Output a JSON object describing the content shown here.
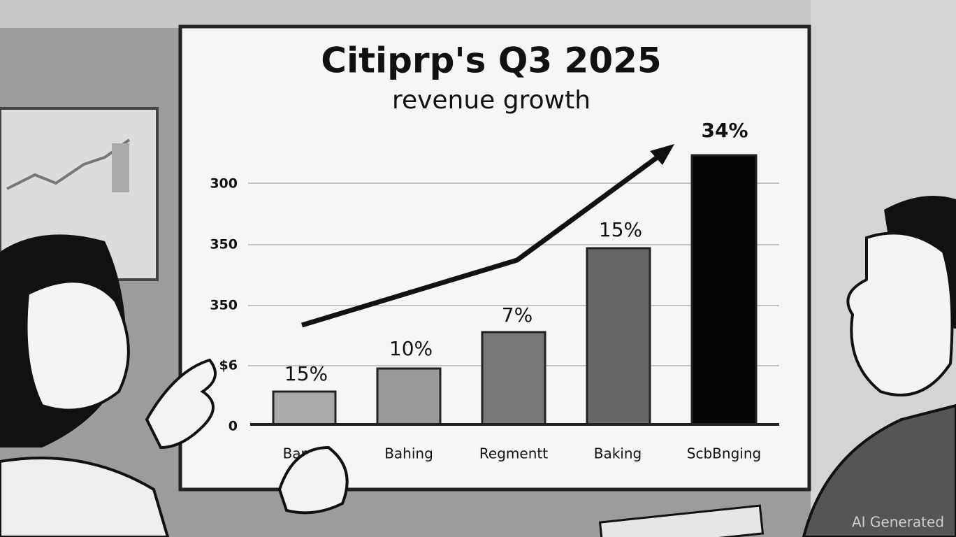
{
  "slide": {
    "title": "Citiprp's Q3 2025",
    "subtitle": "revenue growth",
    "axis_labels": [
      "300",
      "350",
      "350",
      "$6",
      "0"
    ],
    "bars": [
      {
        "category": "Baru",
        "label": "15%"
      },
      {
        "category": "Bahing",
        "label": "10%"
      },
      {
        "category": "Regmentt",
        "label": "7%"
      },
      {
        "category": "Baking",
        "label": "15%"
      },
      {
        "category": "ScbBnging",
        "label": "34%"
      }
    ]
  },
  "watermark": "AI Generated"
}
